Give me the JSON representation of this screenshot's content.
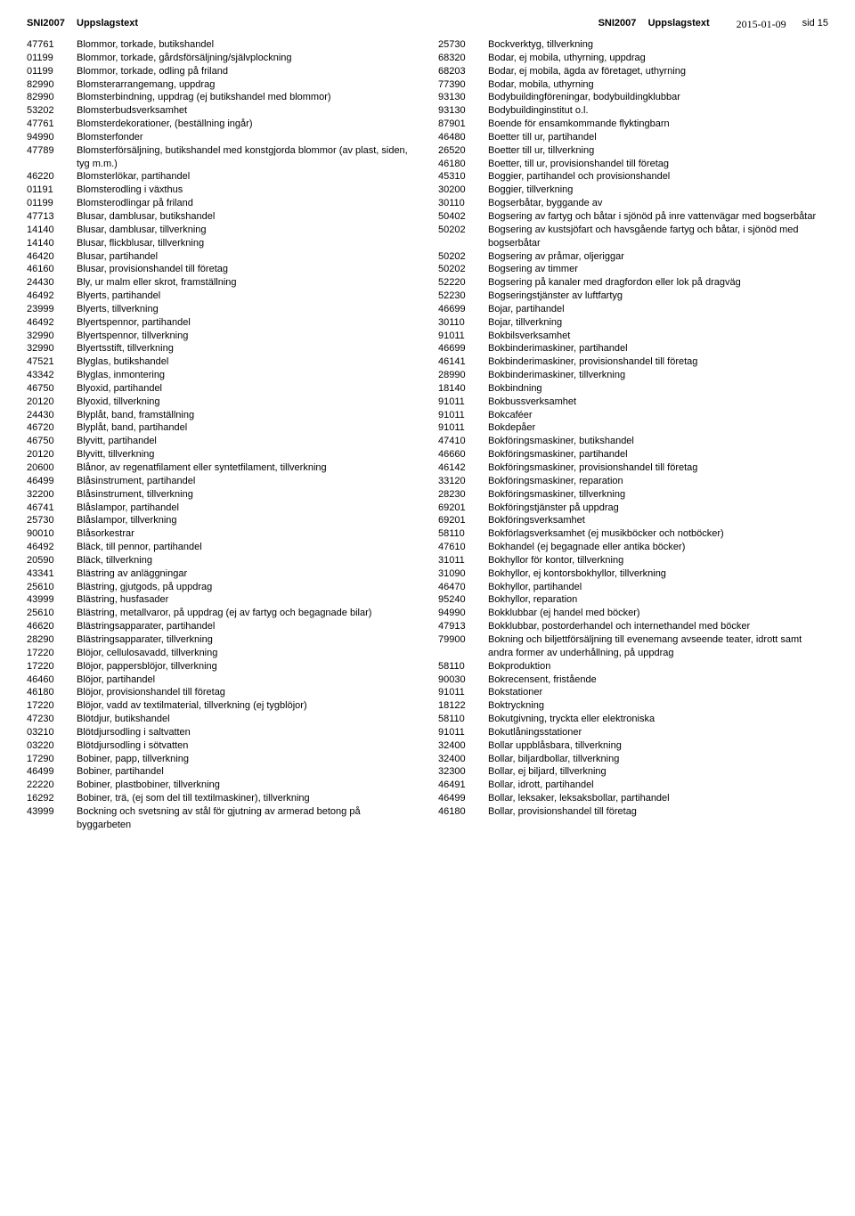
{
  "header": {
    "col1": "SNI2007",
    "col2": "Uppslagstext",
    "date": "2015-01-09",
    "page": "sid 15"
  },
  "left": [
    {
      "code": "47761",
      "text": "Blommor, torkade, butikshandel"
    },
    {
      "code": "01199",
      "text": "Blommor, torkade, gårdsförsäljning/självplockning"
    },
    {
      "code": "01199",
      "text": "Blommor, torkade, odling på friland"
    },
    {
      "code": "82990",
      "text": "Blomsterarrangemang, uppdrag"
    },
    {
      "code": "82990",
      "text": "Blomsterbindning, uppdrag (ej butikshandel med blommor)"
    },
    {
      "code": "53202",
      "text": "Blomsterbudsverksamhet"
    },
    {
      "code": "47761",
      "text": "Blomsterdekorationer, (beställning ingår)"
    },
    {
      "code": "94990",
      "text": "Blomsterfonder"
    },
    {
      "code": "47789",
      "text": "Blomsterförsäljning, butikshandel med konstgjorda blommor (av plast, siden, tyg m.m.)"
    },
    {
      "code": "46220",
      "text": "Blomsterlökar, partihandel"
    },
    {
      "code": "01191",
      "text": "Blomsterodling i växthus"
    },
    {
      "code": "01199",
      "text": "Blomsterodlingar på friland"
    },
    {
      "code": "47713",
      "text": "Blusar, damblusar, butikshandel"
    },
    {
      "code": "14140",
      "text": "Blusar, damblusar, tillverkning"
    },
    {
      "code": "14140",
      "text": "Blusar, flickblusar, tillverkning"
    },
    {
      "code": "46420",
      "text": "Blusar, partihandel"
    },
    {
      "code": "46160",
      "text": "Blusar, provisionshandel till företag"
    },
    {
      "code": "24430",
      "text": "Bly, ur malm eller skrot, framställning"
    },
    {
      "code": "46492",
      "text": "Blyerts, partihandel"
    },
    {
      "code": "23999",
      "text": "Blyerts, tillverkning"
    },
    {
      "code": "46492",
      "text": "Blyertspennor, partihandel"
    },
    {
      "code": "32990",
      "text": "Blyertspennor, tillverkning"
    },
    {
      "code": "32990",
      "text": "Blyertsstift, tillverkning"
    },
    {
      "code": "47521",
      "text": "Blyglas, butikshandel"
    },
    {
      "code": "43342",
      "text": "Blyglas, inmontering"
    },
    {
      "code": "46750",
      "text": "Blyoxid, partihandel"
    },
    {
      "code": "20120",
      "text": "Blyoxid, tillverkning"
    },
    {
      "code": "24430",
      "text": "Blyplåt, band, framställning"
    },
    {
      "code": "46720",
      "text": "Blyplåt, band, partihandel"
    },
    {
      "code": "46750",
      "text": "Blyvitt, partihandel"
    },
    {
      "code": "20120",
      "text": "Blyvitt, tillverkning"
    },
    {
      "code": "20600",
      "text": "Blånor, av regenatfilament eller syntetfilament, tillverkning"
    },
    {
      "code": "46499",
      "text": "Blåsinstrument, partihandel"
    },
    {
      "code": "32200",
      "text": "Blåsinstrument, tillverkning"
    },
    {
      "code": "46741",
      "text": "Blåslampor, partihandel"
    },
    {
      "code": "25730",
      "text": "Blåslampor, tillverkning"
    },
    {
      "code": "90010",
      "text": "Blåsorkestrar"
    },
    {
      "code": "46492",
      "text": "Bläck, till pennor, partihandel"
    },
    {
      "code": "20590",
      "text": "Bläck, tillverkning"
    },
    {
      "code": "43341",
      "text": "Blästring av anläggningar"
    },
    {
      "code": "25610",
      "text": "Blästring, gjutgods, på uppdrag"
    },
    {
      "code": "43999",
      "text": "Blästring, husfasader"
    },
    {
      "code": "25610",
      "text": "Blästring, metallvaror, på uppdrag (ej av fartyg och begagnade bilar)"
    },
    {
      "code": "46620",
      "text": "Blästringsapparater, partihandel"
    },
    {
      "code": "28290",
      "text": "Blästringsapparater, tillverkning"
    },
    {
      "code": "17220",
      "text": "Blöjor, cellulosavadd, tillverkning"
    },
    {
      "code": "17220",
      "text": "Blöjor, pappersblöjor, tillverkning"
    },
    {
      "code": "46460",
      "text": "Blöjor, partihandel"
    },
    {
      "code": "46180",
      "text": "Blöjor, provisionshandel till företag"
    },
    {
      "code": "17220",
      "text": "Blöjor, vadd av textilmaterial, tillverkning (ej tygblöjor)"
    },
    {
      "code": "47230",
      "text": "Blötdjur, butikshandel"
    },
    {
      "code": "03210",
      "text": "Blötdjursodling i saltvatten"
    },
    {
      "code": "03220",
      "text": "Blötdjursodling i sötvatten"
    },
    {
      "code": "17290",
      "text": "Bobiner, papp, tillverkning"
    },
    {
      "code": "46499",
      "text": "Bobiner, partihandel"
    },
    {
      "code": "22220",
      "text": "Bobiner, plastbobiner, tillverkning"
    },
    {
      "code": "16292",
      "text": "Bobiner, trä, (ej som del till textilmaskiner), tillverkning"
    },
    {
      "code": "43999",
      "text": "Bockning och svetsning av stål för gjutning av armerad betong på byggarbeten"
    }
  ],
  "right": [
    {
      "code": "25730",
      "text": "Bockverktyg, tillverkning"
    },
    {
      "code": "68320",
      "text": "Bodar, ej mobila, uthyrning, uppdrag"
    },
    {
      "code": "68203",
      "text": "Bodar, ej mobila, ägda av företaget, uthyrning"
    },
    {
      "code": "77390",
      "text": "Bodar, mobila, uthyrning"
    },
    {
      "code": "93130",
      "text": "Bodybuildingföreningar, bodybuildingklubbar"
    },
    {
      "code": "93130",
      "text": "Bodybuildinginstitut o.l."
    },
    {
      "code": "87901",
      "text": "Boende för ensamkommande flyktingbarn"
    },
    {
      "code": "46480",
      "text": "Boetter till ur, partihandel"
    },
    {
      "code": "26520",
      "text": "Boetter till ur, tillverkning"
    },
    {
      "code": "46180",
      "text": "Boetter, till ur, provisionshandel till företag"
    },
    {
      "code": "45310",
      "text": "Boggier, partihandel och provisionshandel"
    },
    {
      "code": "30200",
      "text": "Boggier, tillverkning"
    },
    {
      "code": "30110",
      "text": "Bogserbåtar, byggande av"
    },
    {
      "code": "50402",
      "text": "Bogsering av fartyg och båtar i sjönöd på inre vattenvägar med bogserbåtar"
    },
    {
      "code": "50202",
      "text": "Bogsering av kustsjöfart och havsgående fartyg och båtar, i sjönöd med bogserbåtar"
    },
    {
      "code": "50202",
      "text": "Bogsering av pråmar, oljeriggar"
    },
    {
      "code": "50202",
      "text": "Bogsering av timmer"
    },
    {
      "code": "52220",
      "text": "Bogsering på kanaler med dragfordon eller lok på dragväg"
    },
    {
      "code": "52230",
      "text": "Bogseringstjänster av luftfartyg"
    },
    {
      "code": "46699",
      "text": "Bojar, partihandel"
    },
    {
      "code": "30110",
      "text": "Bojar, tillverkning"
    },
    {
      "code": "91011",
      "text": "Bokbilsverksamhet"
    },
    {
      "code": "46699",
      "text": "Bokbinderimaskiner, partihandel"
    },
    {
      "code": "46141",
      "text": "Bokbinderimaskiner, provisionshandel till företag"
    },
    {
      "code": "28990",
      "text": "Bokbinderimaskiner, tillverkning"
    },
    {
      "code": "18140",
      "text": "Bokbindning"
    },
    {
      "code": "91011",
      "text": "Bokbussverksamhet"
    },
    {
      "code": "91011",
      "text": "Bokcaféer"
    },
    {
      "code": "91011",
      "text": "Bokdepåer"
    },
    {
      "code": "47410",
      "text": "Bokföringsmaskiner, butikshandel"
    },
    {
      "code": "46660",
      "text": "Bokföringsmaskiner, partihandel"
    },
    {
      "code": "46142",
      "text": "Bokföringsmaskiner, provisionshandel till företag"
    },
    {
      "code": "33120",
      "text": "Bokföringsmaskiner, reparation"
    },
    {
      "code": "28230",
      "text": "Bokföringsmaskiner, tillverkning"
    },
    {
      "code": "69201",
      "text": "Bokföringstjänster på uppdrag"
    },
    {
      "code": "69201",
      "text": "Bokföringsverksamhet"
    },
    {
      "code": "58110",
      "text": "Bokförlagsverksamhet (ej musikböcker och notböcker)"
    },
    {
      "code": "47610",
      "text": "Bokhandel (ej begagnade eller antika böcker)"
    },
    {
      "code": "31011",
      "text": "Bokhyllor för kontor, tillverkning"
    },
    {
      "code": "31090",
      "text": "Bokhyllor, ej kontorsbokhyllor, tillverkning"
    },
    {
      "code": "46470",
      "text": "Bokhyllor, partihandel"
    },
    {
      "code": "95240",
      "text": "Bokhyllor, reparation"
    },
    {
      "code": "94990",
      "text": "Bokklubbar (ej handel med böcker)"
    },
    {
      "code": "47913",
      "text": "Bokklubbar, postorderhandel och internethandel med böcker"
    },
    {
      "code": "79900",
      "text": "Bokning och biljettförsäljning till evenemang avseende teater, idrott samt andra former av underhållning, på uppdrag"
    },
    {
      "code": "58110",
      "text": "Bokproduktion"
    },
    {
      "code": "90030",
      "text": "Bokrecensent, fristående"
    },
    {
      "code": "91011",
      "text": "Bokstationer"
    },
    {
      "code": "18122",
      "text": "Boktryckning"
    },
    {
      "code": "58110",
      "text": "Bokutgivning, tryckta eller elektroniska"
    },
    {
      "code": "91011",
      "text": "Bokutlåningsstationer"
    },
    {
      "code": "32400",
      "text": "Bollar uppblåsbara, tillverkning"
    },
    {
      "code": "32400",
      "text": "Bollar, biljardbollar, tillverkning"
    },
    {
      "code": "32300",
      "text": "Bollar, ej biljard, tillverkning"
    },
    {
      "code": "46491",
      "text": "Bollar, idrott, partihandel"
    },
    {
      "code": "46499",
      "text": "Bollar, leksaker, leksaksbollar, partihandel"
    },
    {
      "code": "46180",
      "text": "Bollar, provisionshandel till företag"
    }
  ]
}
